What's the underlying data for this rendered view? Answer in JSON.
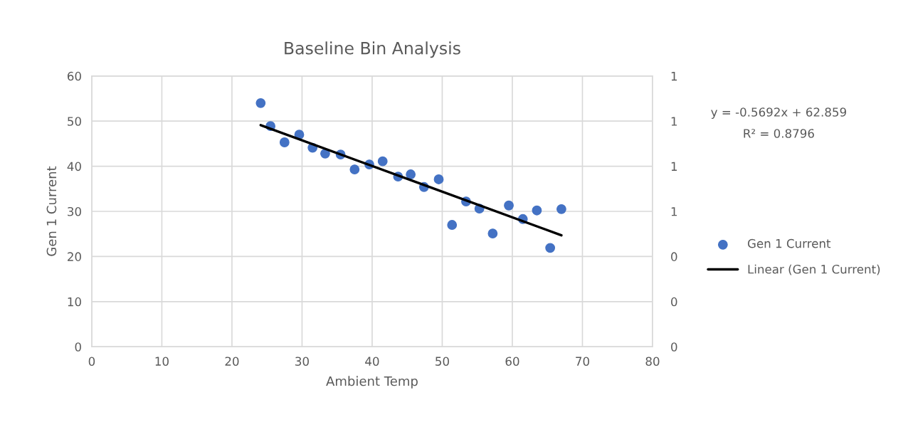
{
  "chart_data": {
    "type": "scatter",
    "title": "Baseline Bin Analysis",
    "xlabel": "Ambient Temp",
    "ylabel": "Gen 1 Current",
    "series": [
      {
        "name": "Gen 1 Current",
        "color": "#4472c4",
        "marker": "circle",
        "x": [
          24.1,
          25.5,
          27.5,
          29.6,
          31.5,
          33.3,
          35.5,
          37.5,
          39.6,
          41.5,
          43.7,
          45.5,
          47.4,
          49.5,
          51.4,
          53.4,
          55.3,
          57.2,
          59.5,
          61.5,
          63.5,
          65.4,
          67.0
        ],
        "values": [
          54.0,
          48.9,
          45.3,
          47.0,
          44.1,
          42.8,
          42.6,
          39.3,
          40.4,
          41.1,
          37.7,
          38.2,
          35.4,
          37.1,
          27.0,
          32.2,
          30.6,
          25.1,
          31.3,
          28.3,
          30.2,
          21.9,
          30.5
        ]
      },
      {
        "name": "Linear (Gen 1 Current)",
        "type": "line",
        "color": "#000000",
        "marker": "none",
        "line_style": "solid",
        "x": [
          24.1,
          67.0
        ],
        "values": [
          49.1,
          24.7
        ]
      }
    ],
    "xlim": [
      0,
      80
    ],
    "xticks": [
      0,
      10,
      20,
      30,
      40,
      50,
      60,
      70,
      80
    ],
    "ylim": [
      0,
      60
    ],
    "yticks": [
      0,
      10,
      20,
      30,
      40,
      50,
      60
    ],
    "y2lim": [
      0,
      1.2
    ],
    "y2ticks": [
      0,
      {
        "value": 0.2,
        "label": "0"
      },
      {
        "value": 0.4,
        "label": "0"
      },
      {
        "value": 0.6,
        "label": "1"
      },
      {
        "value": 0.8,
        "label": "1"
      },
      {
        "value": 1.0,
        "label": "1"
      },
      {
        "value": 1.2,
        "label": "1"
      }
    ],
    "annotations": [
      "y = -0.5692x + 62.859",
      "R² = 0.8796"
    ],
    "grid": true,
    "legend": "right"
  }
}
